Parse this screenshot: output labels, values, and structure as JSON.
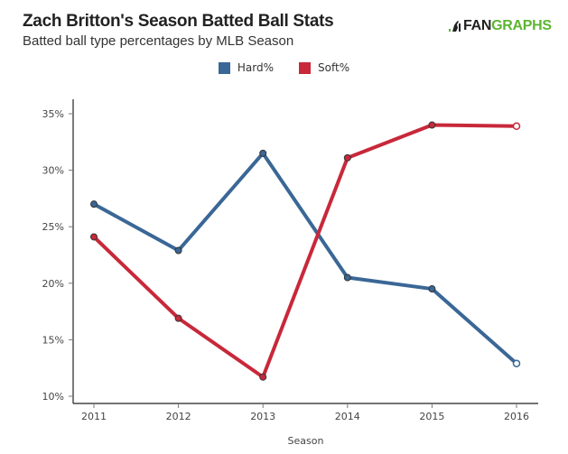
{
  "header": {
    "title": "Zach Britton's Season Batted Ball Stats",
    "subtitle": "Batted ball type percentages by MLB Season",
    "logo_prefix": "FAN",
    "logo_suffix": "GRAPHS"
  },
  "colors": {
    "hard": "#3a6796",
    "soft": "#c8283a",
    "logo_green": "#5cb531"
  },
  "chart_data": {
    "type": "line",
    "title": "Zach Britton's Season Batted Ball Stats",
    "subtitle": "Batted ball type percentages by MLB Season",
    "xlabel": "Season",
    "ylabel": "",
    "categories": [
      "2011",
      "2012",
      "2013",
      "2014",
      "2015",
      "2016"
    ],
    "ylim": [
      10,
      35
    ],
    "yticks": [
      10,
      15,
      20,
      25,
      30,
      35
    ],
    "ytick_labels": [
      "10%",
      "15%",
      "20%",
      "25%",
      "30%",
      "35%"
    ],
    "grid": false,
    "legend_position": "top-center",
    "series": [
      {
        "name": "Hard%",
        "color": "#3a6796",
        "values": [
          27.0,
          22.9,
          31.5,
          20.5,
          19.5,
          12.9
        ]
      },
      {
        "name": "Soft%",
        "color": "#c8283a",
        "values": [
          24.1,
          16.9,
          11.7,
          31.1,
          34.0,
          33.9
        ]
      }
    ],
    "last_point_hollow": true
  }
}
